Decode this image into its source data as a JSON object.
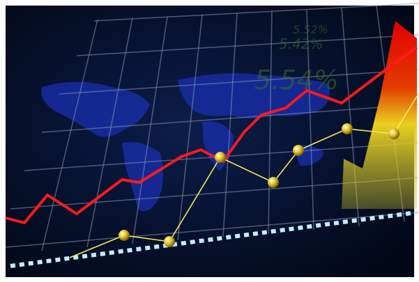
{
  "annotations": [
    "5.52%",
    "5.42%",
    "5.54%"
  ]
}
